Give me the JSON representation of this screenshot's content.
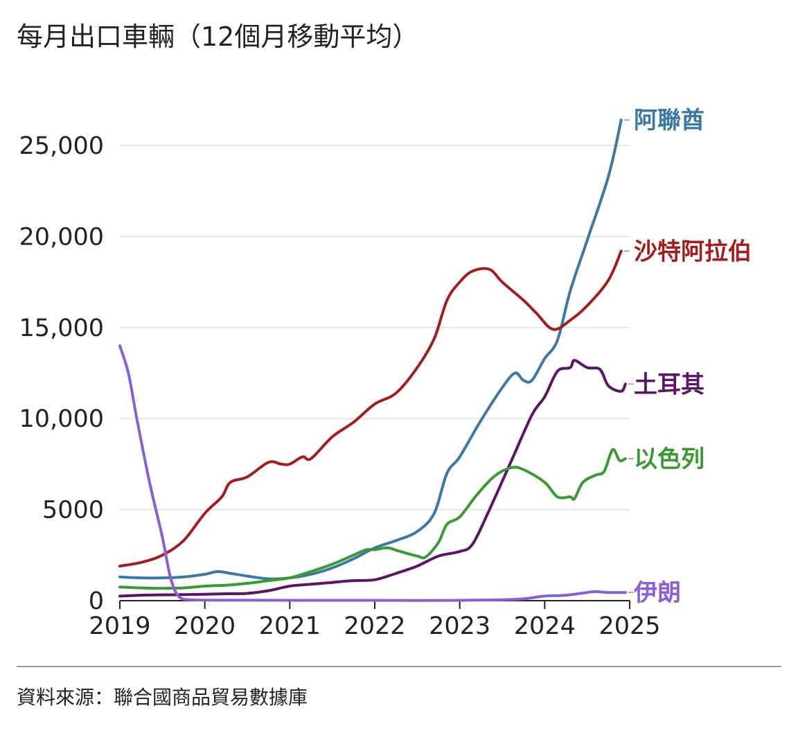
{
  "title": "每月出口車輛（12個月移動平均）",
  "source": "資料來源：聯合國商品貿易數據庫",
  "chart_data": {
    "type": "line",
    "title": "每月出口車輛（12個月移動平均）",
    "xlabel": "",
    "ylabel": "",
    "x_ticks": [
      "2019",
      "2020",
      "2021",
      "2022",
      "2023",
      "2024",
      "2025"
    ],
    "y_ticks": [
      {
        "value": 0,
        "label": "0"
      },
      {
        "value": 5000,
        "label": "5000"
      },
      {
        "value": 10000,
        "label": "10,000"
      },
      {
        "value": 15000,
        "label": "15,000"
      },
      {
        "value": 20000,
        "label": "20,000"
      },
      {
        "value": 25000,
        "label": "25,000"
      }
    ],
    "xlim": [
      2019,
      2025
    ],
    "ylim": [
      0,
      27000
    ],
    "grid": "horizontal",
    "legend": "labels at line ends (right)",
    "series": [
      {
        "name": "阿聯酋",
        "color": "#3a78a8",
        "points": [
          [
            2019,
            1300
          ],
          [
            2019.25,
            1250
          ],
          [
            2019.5,
            1250
          ],
          [
            2019.75,
            1300
          ],
          [
            2020,
            1450
          ],
          [
            2020.15,
            1600
          ],
          [
            2020.3,
            1500
          ],
          [
            2020.5,
            1350
          ],
          [
            2020.75,
            1200
          ],
          [
            2021,
            1250
          ],
          [
            2021.25,
            1450
          ],
          [
            2021.5,
            1800
          ],
          [
            2021.75,
            2300
          ],
          [
            2022,
            2900
          ],
          [
            2022.25,
            3300
          ],
          [
            2022.5,
            3800
          ],
          [
            2022.7,
            4800
          ],
          [
            2022.85,
            7000
          ],
          [
            2023,
            7900
          ],
          [
            2023.25,
            9900
          ],
          [
            2023.5,
            11700
          ],
          [
            2023.65,
            12500
          ],
          [
            2023.75,
            12100
          ],
          [
            2023.85,
            12100
          ],
          [
            2024,
            13300
          ],
          [
            2024.15,
            14300
          ],
          [
            2024.3,
            17000
          ],
          [
            2024.5,
            19800
          ],
          [
            2024.75,
            23300
          ],
          [
            2024.9,
            26400
          ]
        ]
      },
      {
        "name": "沙特阿拉伯",
        "color": "#a51c1c",
        "points": [
          [
            2019,
            1900
          ],
          [
            2019.25,
            2100
          ],
          [
            2019.5,
            2500
          ],
          [
            2019.75,
            3300
          ],
          [
            2020,
            4800
          ],
          [
            2020.2,
            5700
          ],
          [
            2020.3,
            6500
          ],
          [
            2020.5,
            6800
          ],
          [
            2020.75,
            7600
          ],
          [
            2020.9,
            7500
          ],
          [
            2021,
            7500
          ],
          [
            2021.15,
            7900
          ],
          [
            2021.25,
            7800
          ],
          [
            2021.5,
            9000
          ],
          [
            2021.75,
            9800
          ],
          [
            2022,
            10800
          ],
          [
            2022.25,
            11400
          ],
          [
            2022.5,
            12800
          ],
          [
            2022.7,
            14400
          ],
          [
            2022.85,
            16500
          ],
          [
            2023,
            17500
          ],
          [
            2023.15,
            18100
          ],
          [
            2023.35,
            18200
          ],
          [
            2023.5,
            17500
          ],
          [
            2023.75,
            16500
          ],
          [
            2023.9,
            15800
          ],
          [
            2024.1,
            14900
          ],
          [
            2024.3,
            15400
          ],
          [
            2024.5,
            16200
          ],
          [
            2024.75,
            17600
          ],
          [
            2024.9,
            19200
          ]
        ]
      },
      {
        "name": "土耳其",
        "color": "#5c1468",
        "points": [
          [
            2019,
            250
          ],
          [
            2019.25,
            300
          ],
          [
            2019.5,
            320
          ],
          [
            2019.75,
            330
          ],
          [
            2020,
            350
          ],
          [
            2020.25,
            380
          ],
          [
            2020.5,
            400
          ],
          [
            2020.75,
            550
          ],
          [
            2021,
            800
          ],
          [
            2021.25,
            900
          ],
          [
            2021.5,
            1000
          ],
          [
            2021.75,
            1100
          ],
          [
            2022,
            1150
          ],
          [
            2022.25,
            1500
          ],
          [
            2022.5,
            1900
          ],
          [
            2022.75,
            2450
          ],
          [
            2023,
            2700
          ],
          [
            2023.15,
            3100
          ],
          [
            2023.35,
            5000
          ],
          [
            2023.6,
            7600
          ],
          [
            2023.85,
            10200
          ],
          [
            2024,
            11200
          ],
          [
            2024.15,
            12600
          ],
          [
            2024.3,
            12800
          ],
          [
            2024.35,
            13200
          ],
          [
            2024.5,
            12800
          ],
          [
            2024.65,
            12700
          ],
          [
            2024.75,
            11800
          ],
          [
            2024.9,
            11500
          ],
          [
            2024.95,
            11900
          ]
        ]
      },
      {
        "name": "以色列",
        "color": "#3a9a32",
        "points": [
          [
            2019,
            750
          ],
          [
            2019.25,
            700
          ],
          [
            2019.5,
            680
          ],
          [
            2019.75,
            700
          ],
          [
            2020,
            800
          ],
          [
            2020.25,
            850
          ],
          [
            2020.5,
            950
          ],
          [
            2020.75,
            1100
          ],
          [
            2021,
            1250
          ],
          [
            2021.25,
            1600
          ],
          [
            2021.5,
            2000
          ],
          [
            2021.75,
            2500
          ],
          [
            2021.9,
            2800
          ],
          [
            2022,
            2800
          ],
          [
            2022.15,
            2900
          ],
          [
            2022.3,
            2700
          ],
          [
            2022.5,
            2450
          ],
          [
            2022.6,
            2400
          ],
          [
            2022.75,
            3200
          ],
          [
            2022.85,
            4200
          ],
          [
            2023,
            4600
          ],
          [
            2023.2,
            5800
          ],
          [
            2023.4,
            6800
          ],
          [
            2023.6,
            7300
          ],
          [
            2023.75,
            7200
          ],
          [
            2024,
            6500
          ],
          [
            2024.15,
            5700
          ],
          [
            2024.3,
            5700
          ],
          [
            2024.35,
            5600
          ],
          [
            2024.45,
            6500
          ],
          [
            2024.6,
            6900
          ],
          [
            2024.7,
            7100
          ],
          [
            2024.8,
            8300
          ],
          [
            2024.88,
            7700
          ],
          [
            2024.95,
            7800
          ]
        ]
      },
      {
        "name": "伊朗",
        "color": "#8a5ed8",
        "points": [
          [
            2019,
            14000
          ],
          [
            2019.1,
            12500
          ],
          [
            2019.2,
            10000
          ],
          [
            2019.35,
            6500
          ],
          [
            2019.5,
            3500
          ],
          [
            2019.6,
            1200
          ],
          [
            2019.7,
            200
          ],
          [
            2019.85,
            50
          ],
          [
            2020,
            30
          ],
          [
            2021,
            20
          ],
          [
            2022,
            20
          ],
          [
            2022.5,
            10
          ],
          [
            2023,
            20
          ],
          [
            2023.5,
            50
          ],
          [
            2023.75,
            100
          ],
          [
            2024,
            250
          ],
          [
            2024.25,
            300
          ],
          [
            2024.5,
            450
          ],
          [
            2024.6,
            500
          ],
          [
            2024.75,
            450
          ],
          [
            2024.95,
            450
          ]
        ]
      }
    ]
  }
}
